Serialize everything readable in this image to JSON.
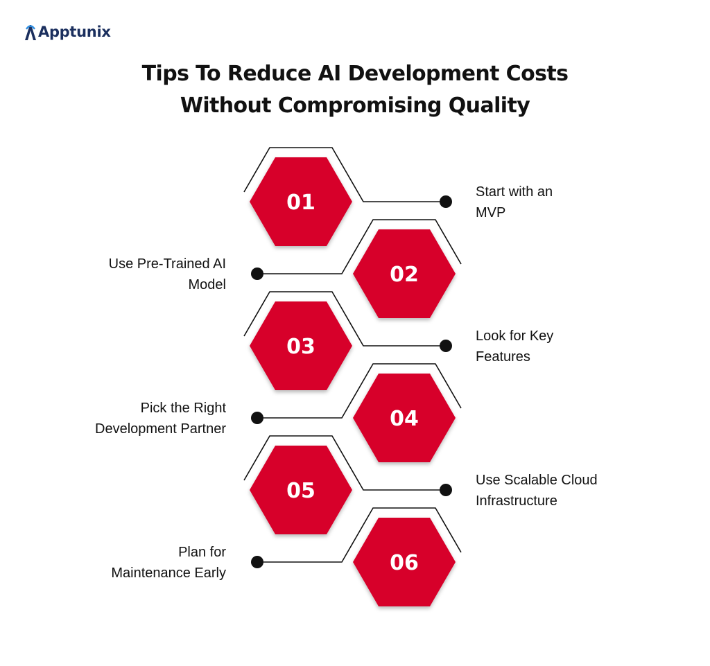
{
  "brand": {
    "logo_text": "Apptunix",
    "color": "#1b2f5e"
  },
  "title": {
    "line1": "Tips To Reduce AI Development Costs",
    "line2": "Without Compromising Quality"
  },
  "accent_color": "#d7052a",
  "steps": [
    {
      "number": "01",
      "line1": "Start with an",
      "line2": "MVP"
    },
    {
      "number": "02",
      "line1": "Use Pre-Trained AI",
      "line2": "Model"
    },
    {
      "number": "03",
      "line1": "Look for Key",
      "line2": "Features"
    },
    {
      "number": "04",
      "line1": "Pick the Right",
      "line2": "Development Partner"
    },
    {
      "number": "05",
      "line1": "Use Scalable Cloud",
      "line2": "Infrastructure"
    },
    {
      "number": "06",
      "line1": "Plan for",
      "line2": "Maintenance Early"
    }
  ]
}
